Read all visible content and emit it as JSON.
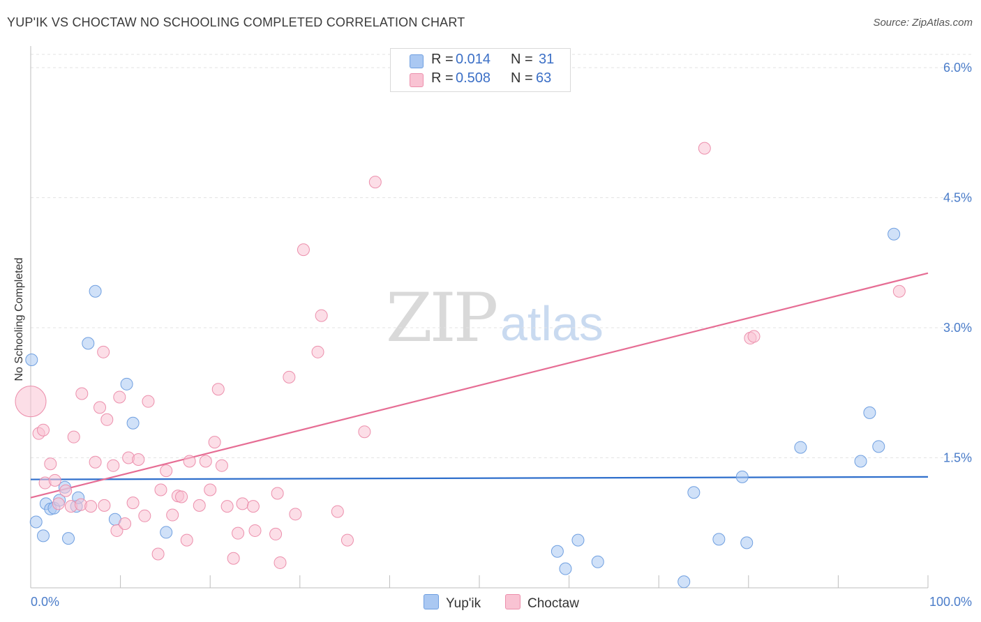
{
  "title": "YUP'IK VS CHOCTAW NO SCHOOLING COMPLETED CORRELATION CHART",
  "source": "Source: ZipAtlas.com",
  "watermark": {
    "zip": "ZIP",
    "atlas": "atlas"
  },
  "stats": [
    {
      "r_label": "R =",
      "r_value": "0.014",
      "n_label": "N =",
      "n_value": "31",
      "color": "#aac8f2",
      "border": "#6f9fe0"
    },
    {
      "r_label": "R =",
      "r_value": "0.508",
      "n_label": "N =",
      "n_value": "63",
      "color": "#f9c3d3",
      "border": "#ec8fac"
    }
  ],
  "legend": [
    {
      "label": "Yup'ik",
      "color": "#aac8f2",
      "border": "#6f9fe0"
    },
    {
      "label": "Choctaw",
      "color": "#f9c3d3",
      "border": "#ec8fac"
    }
  ],
  "chart_data": {
    "type": "scatter",
    "title": "YUP'IK VS CHOCTAW NO SCHOOLING COMPLETED CORRELATION CHART",
    "xlabel": "",
    "ylabel": "No Schooling Completed",
    "xlim": [
      0,
      100
    ],
    "ylim": [
      0,
      6.0
    ],
    "x_tick_labels": [
      "0.0%",
      "100.0%"
    ],
    "y_ticks": [
      1.5,
      3.0,
      4.5,
      6.0
    ],
    "y_tick_labels": [
      "1.5%",
      "3.0%",
      "4.5%",
      "6.0%"
    ],
    "grid": "horizontal dashed",
    "series": [
      {
        "name": "Yup'ik",
        "color": "#aac8f2",
        "edge": "#6f9fe0",
        "line_color": "#2f6fcc",
        "trend": [
          [
            0,
            1.25
          ],
          [
            100,
            1.28
          ]
        ],
        "points": [
          [
            0.1,
            2.63
          ],
          [
            0.6,
            0.76
          ],
          [
            1.4,
            0.6
          ],
          [
            1.7,
            0.97
          ],
          [
            2.2,
            0.91
          ],
          [
            2.6,
            0.92
          ],
          [
            3.2,
            1.01
          ],
          [
            3.8,
            1.16
          ],
          [
            4.2,
            0.57
          ],
          [
            5.1,
            0.94
          ],
          [
            5.3,
            1.04
          ],
          [
            6.4,
            2.82
          ],
          [
            7.2,
            3.42
          ],
          [
            9.4,
            0.79
          ],
          [
            10.7,
            2.35
          ],
          [
            11.4,
            1.9
          ],
          [
            15.1,
            0.64
          ],
          [
            58.7,
            0.42
          ],
          [
            59.6,
            0.22
          ],
          [
            61.0,
            0.55
          ],
          [
            63.2,
            0.3
          ],
          [
            72.8,
            0.07
          ],
          [
            73.9,
            1.1
          ],
          [
            76.7,
            0.56
          ],
          [
            79.3,
            1.28
          ],
          [
            79.8,
            0.52
          ],
          [
            85.8,
            1.62
          ],
          [
            92.5,
            1.46
          ],
          [
            93.5,
            2.02
          ],
          [
            94.5,
            1.63
          ],
          [
            96.2,
            4.08
          ]
        ]
      },
      {
        "name": "Choctaw",
        "color": "#f9c3d3",
        "edge": "#ec8fac",
        "line_color": "#e66d94",
        "trend": [
          [
            0,
            1.04
          ],
          [
            100,
            3.63
          ]
        ],
        "points": [
          [
            0.0,
            2.15
          ],
          [
            0.9,
            1.78
          ],
          [
            1.4,
            1.82
          ],
          [
            1.6,
            1.21
          ],
          [
            2.2,
            1.43
          ],
          [
            2.7,
            1.24
          ],
          [
            3.1,
            0.97
          ],
          [
            3.9,
            1.12
          ],
          [
            4.5,
            0.94
          ],
          [
            4.8,
            1.74
          ],
          [
            5.6,
            0.96
          ],
          [
            5.7,
            2.24
          ],
          [
            6.7,
            0.94
          ],
          [
            7.2,
            1.45
          ],
          [
            7.7,
            2.08
          ],
          [
            8.1,
            2.72
          ],
          [
            8.5,
            1.94
          ],
          [
            9.2,
            1.41
          ],
          [
            9.6,
            0.66
          ],
          [
            9.9,
            2.2
          ],
          [
            10.5,
            0.74
          ],
          [
            10.9,
            1.5
          ],
          [
            11.4,
            0.98
          ],
          [
            12.0,
            1.48
          ],
          [
            12.7,
            0.83
          ],
          [
            13.1,
            2.15
          ],
          [
            14.2,
            0.39
          ],
          [
            14.5,
            1.13
          ],
          [
            15.1,
            1.35
          ],
          [
            15.8,
            0.84
          ],
          [
            16.4,
            1.06
          ],
          [
            16.8,
            1.05
          ],
          [
            17.4,
            0.55
          ],
          [
            17.7,
            1.46
          ],
          [
            18.8,
            0.95
          ],
          [
            19.5,
            1.46
          ],
          [
            20.0,
            1.13
          ],
          [
            20.5,
            1.68
          ],
          [
            20.9,
            2.29
          ],
          [
            21.3,
            1.41
          ],
          [
            21.9,
            0.94
          ],
          [
            22.6,
            0.34
          ],
          [
            23.1,
            0.63
          ],
          [
            23.6,
            0.97
          ],
          [
            25.0,
            0.66
          ],
          [
            27.3,
            0.62
          ],
          [
            27.5,
            1.09
          ],
          [
            27.8,
            0.29
          ],
          [
            28.8,
            2.43
          ],
          [
            29.5,
            0.85
          ],
          [
            30.4,
            3.9
          ],
          [
            32.0,
            2.72
          ],
          [
            32.4,
            3.14
          ],
          [
            34.2,
            0.88
          ],
          [
            35.3,
            0.55
          ],
          [
            37.2,
            1.8
          ],
          [
            38.4,
            4.68
          ],
          [
            75.1,
            5.07
          ],
          [
            80.2,
            2.88
          ],
          [
            80.6,
            2.9
          ],
          [
            96.8,
            3.42
          ],
          [
            8.2,
            0.95
          ],
          [
            24.8,
            0.94
          ]
        ]
      }
    ]
  }
}
